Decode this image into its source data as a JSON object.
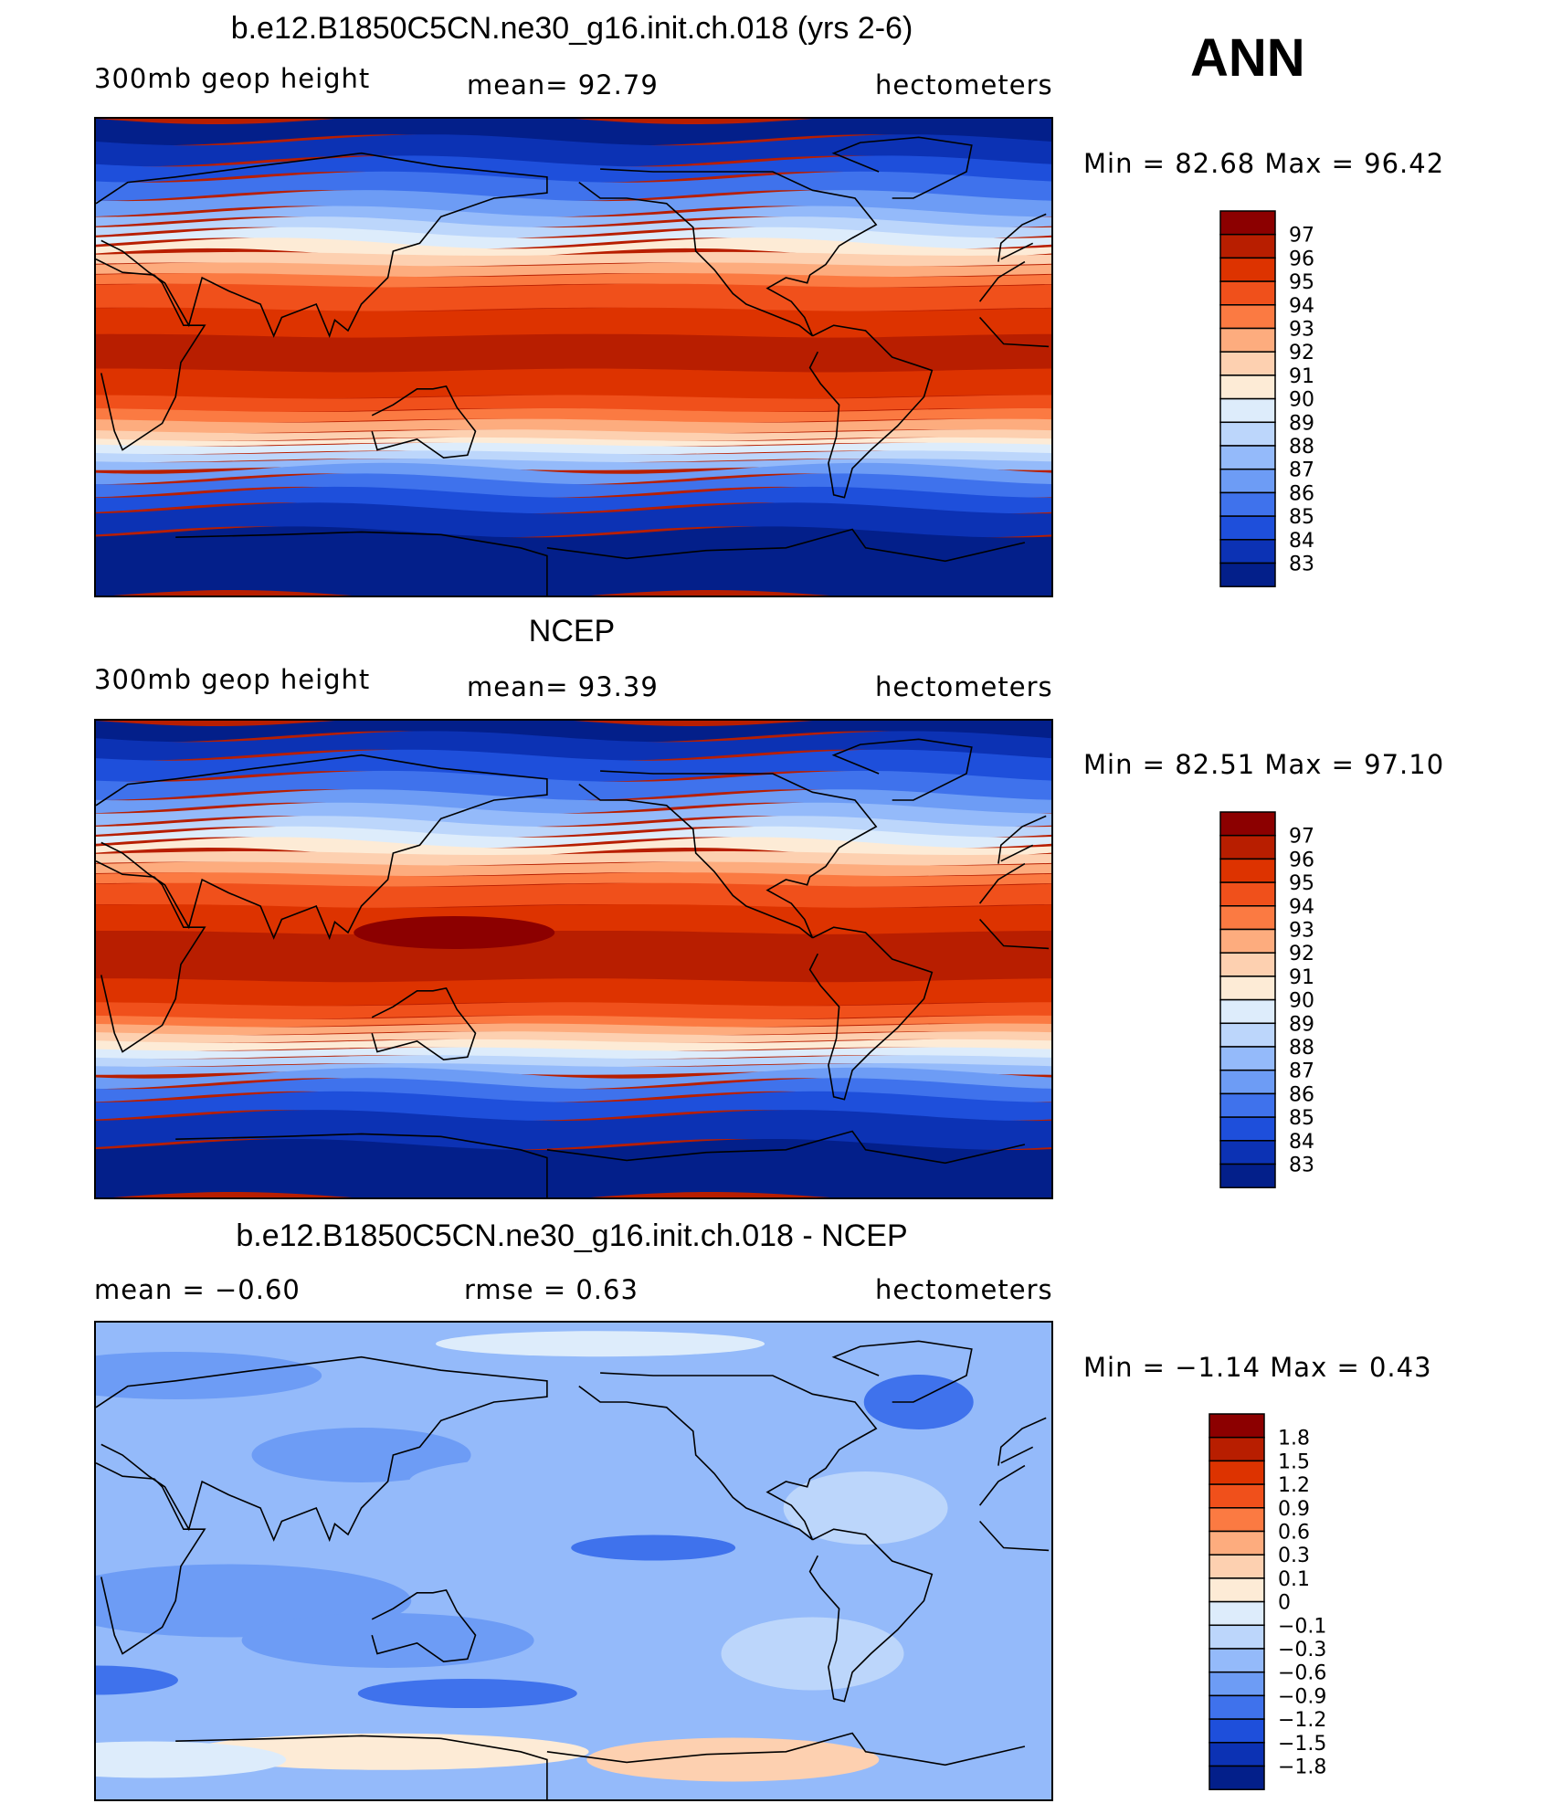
{
  "season": "ANN",
  "panels": [
    {
      "title": "b.e12.B1850C5CN.ne30_g16.init.ch.018 (yrs 2-6)",
      "left_label": "300mb  geop  height",
      "center_label": "mean=   92.79",
      "right_label": "hectometers",
      "minmax": "Min  =    82.68  Max  =    96.42"
    },
    {
      "title": "NCEP",
      "left_label": "300mb  geop  height",
      "center_label": "mean=   93.39",
      "right_label": "hectometers",
      "minmax": "Min  =    82.51  Max  =    97.10"
    },
    {
      "title": "b.e12.B1850C5CN.ne30_g16.init.ch.018 - NCEP",
      "left_label": "mean  =    −0.60",
      "center_label": "rmse  =     0.63",
      "right_label": "hectometers",
      "minmax": "Min  =   −1.14  Max  =     0.43"
    }
  ],
  "colorbars": {
    "abs_levels": [
      "97",
      "96",
      "95",
      "94",
      "93",
      "92",
      "91",
      "90",
      "89",
      "88",
      "87",
      "86",
      "85",
      "84",
      "83"
    ],
    "diff_levels": [
      "1.8",
      "1.5",
      "1.2",
      "0.9",
      "0.6",
      "0.3",
      "0.1",
      "0",
      "−0.1",
      "−0.3",
      "−0.6",
      "−0.9",
      "−1.2",
      "−1.5",
      "−1.8"
    ],
    "palette": [
      "#8c0000",
      "#b81e00",
      "#dd3300",
      "#f0501b",
      "#fb7a42",
      "#fdac7e",
      "#fdd0b0",
      "#fdebd6",
      "#ddecfb",
      "#bcd6fb",
      "#94bafa",
      "#6d9cf5",
      "#3f72ec",
      "#1e4fdb",
      "#0c32b4",
      "#031f8a"
    ]
  }
}
